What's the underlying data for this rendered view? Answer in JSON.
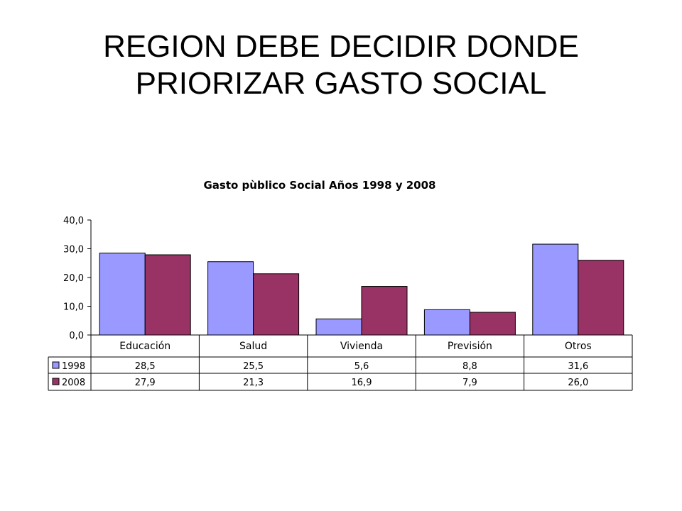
{
  "slide": {
    "title_line1": "REGION DEBE DECIDIR DONDE",
    "title_line2": "PRIORIZAR GASTO SOCIAL"
  },
  "chart_data": {
    "type": "bar",
    "title": "Gasto pùblico Social Años 1998 y 2008",
    "categories": [
      "Educación",
      "Salud",
      "Vivienda",
      "Previsión",
      "Otros"
    ],
    "series": [
      {
        "name": "1998",
        "color": "#9999ff",
        "values": [
          28.5,
          25.5,
          5.6,
          8.8,
          31.6
        ],
        "labels": [
          "28,5",
          "25,5",
          "5,6",
          "8,8",
          "31,6"
        ]
      },
      {
        "name": "2008",
        "color": "#993366",
        "values": [
          27.9,
          21.3,
          16.9,
          7.9,
          26.0
        ],
        "labels": [
          "27,9",
          "21,3",
          "16,9",
          "7,9",
          "26,0"
        ]
      }
    ],
    "y_ticks": [
      0,
      10,
      20,
      30,
      40
    ],
    "y_tick_labels": [
      "0,0",
      "10,0",
      "20,0",
      "30,0",
      "40,0"
    ],
    "ylim": [
      0,
      40
    ],
    "data_table": true,
    "grid": false
  }
}
